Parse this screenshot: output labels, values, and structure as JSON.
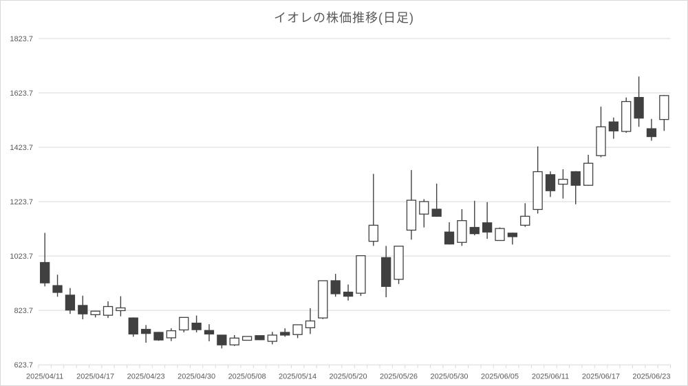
{
  "colors": {
    "background": "#ffffff",
    "frame_border": "#d9d9d9",
    "gridline": "#d9d9d9",
    "axis_text": "#595959",
    "title_text": "#595959",
    "candle_outline": "#404040",
    "bearish_fill": "#404040",
    "bullish_fill": "#ffffff"
  },
  "chart_data": {
    "type": "candlestick",
    "title": "イオレの株価推移(日足)",
    "grid": true,
    "y_axis": {
      "min": 623.7,
      "max": 1823.7,
      "tick_interval": 200,
      "tick_labels": [
        "623.7",
        "823.7",
        "1023.7",
        "1223.7",
        "1423.7",
        "1623.7",
        "1823.7"
      ]
    },
    "x_axis": {
      "label_every_n_candles": 4,
      "tick_labels": [
        "2025/04/11",
        "2025/04/17",
        "2025/04/23",
        "2025/04/30",
        "2025/05/08",
        "2025/05/14",
        "2025/05/20",
        "2025/05/26",
        "2025/05/30",
        "2025/06/05",
        "2025/06/11",
        "2025/06/17",
        "2025/06/23"
      ]
    },
    "candles": [
      {
        "date": "2025/04/11",
        "open": 1000,
        "high": 1109,
        "low": 912,
        "close": 925
      },
      {
        "date": "2025/04/14",
        "open": 915,
        "high": 955,
        "low": 874,
        "close": 890
      },
      {
        "date": "2025/04/15",
        "open": 880,
        "high": 906,
        "low": 811,
        "close": 825
      },
      {
        "date": "2025/04/16",
        "open": 842,
        "high": 878,
        "low": 791,
        "close": 811
      },
      {
        "date": "2025/04/17",
        "open": 808,
        "high": 823,
        "low": 798,
        "close": 821
      },
      {
        "date": "2025/04/18",
        "open": 806,
        "high": 857,
        "low": 796,
        "close": 838
      },
      {
        "date": "2025/04/21",
        "open": 823,
        "high": 876,
        "low": 802,
        "close": 833
      },
      {
        "date": "2025/04/22",
        "open": 796,
        "high": 798,
        "low": 727,
        "close": 737
      },
      {
        "date": "2025/04/23",
        "open": 754,
        "high": 770,
        "low": 705,
        "close": 739
      },
      {
        "date": "2025/04/24",
        "open": 743,
        "high": 745,
        "low": 712,
        "close": 715
      },
      {
        "date": "2025/04/25",
        "open": 723,
        "high": 758,
        "low": 711,
        "close": 749
      },
      {
        "date": "2025/04/28",
        "open": 752,
        "high": 799,
        "low": 743,
        "close": 798
      },
      {
        "date": "2025/04/30",
        "open": 777,
        "high": 805,
        "low": 743,
        "close": 753
      },
      {
        "date": "2025/05/01",
        "open": 750,
        "high": 773,
        "low": 710,
        "close": 737
      },
      {
        "date": "2025/05/02",
        "open": 733,
        "high": 734,
        "low": 684,
        "close": 697
      },
      {
        "date": "2025/05/07",
        "open": 697,
        "high": 733,
        "low": 693,
        "close": 722
      },
      {
        "date": "2025/05/08",
        "open": 714,
        "high": 729,
        "low": 713,
        "close": 728
      },
      {
        "date": "2025/05/09",
        "open": 731,
        "high": 732,
        "low": 714,
        "close": 716
      },
      {
        "date": "2025/05/12",
        "open": 710,
        "high": 745,
        "low": 699,
        "close": 733
      },
      {
        "date": "2025/05/13",
        "open": 743,
        "high": 758,
        "low": 727,
        "close": 733
      },
      {
        "date": "2025/05/14",
        "open": 735,
        "high": 772,
        "low": 722,
        "close": 771
      },
      {
        "date": "2025/05/15",
        "open": 760,
        "high": 832,
        "low": 737,
        "close": 785
      },
      {
        "date": "2025/05/16",
        "open": 796,
        "high": 934,
        "low": 792,
        "close": 933
      },
      {
        "date": "2025/05/19",
        "open": 933,
        "high": 958,
        "low": 874,
        "close": 885
      },
      {
        "date": "2025/05/20",
        "open": 891,
        "high": 919,
        "low": 860,
        "close": 876
      },
      {
        "date": "2025/05/21",
        "open": 887,
        "high": 1026,
        "low": 877,
        "close": 1025
      },
      {
        "date": "2025/05/22",
        "open": 1078,
        "high": 1326,
        "low": 1061,
        "close": 1137
      },
      {
        "date": "2025/05/23",
        "open": 1018,
        "high": 1061,
        "low": 872,
        "close": 912
      },
      {
        "date": "2025/05/26",
        "open": 938,
        "high": 1061,
        "low": 921,
        "close": 1060
      },
      {
        "date": "2025/05/27",
        "open": 1119,
        "high": 1340,
        "low": 1084,
        "close": 1229
      },
      {
        "date": "2025/05/28",
        "open": 1178,
        "high": 1233,
        "low": 1129,
        "close": 1224
      },
      {
        "date": "2025/05/29",
        "open": 1196,
        "high": 1290,
        "low": 1168,
        "close": 1170
      },
      {
        "date": "2025/05/30",
        "open": 1112,
        "high": 1148,
        "low": 1066,
        "close": 1068
      },
      {
        "date": "2025/06/02",
        "open": 1074,
        "high": 1196,
        "low": 1061,
        "close": 1154
      },
      {
        "date": "2025/06/03",
        "open": 1129,
        "high": 1227,
        "low": 1100,
        "close": 1106
      },
      {
        "date": "2025/06/04",
        "open": 1146,
        "high": 1222,
        "low": 1087,
        "close": 1112
      },
      {
        "date": "2025/06/05",
        "open": 1081,
        "high": 1129,
        "low": 1080,
        "close": 1125
      },
      {
        "date": "2025/06/06",
        "open": 1108,
        "high": 1110,
        "low": 1066,
        "close": 1095
      },
      {
        "date": "2025/06/09",
        "open": 1137,
        "high": 1218,
        "low": 1131,
        "close": 1170
      },
      {
        "date": "2025/06/10",
        "open": 1195,
        "high": 1427,
        "low": 1180,
        "close": 1334
      },
      {
        "date": "2025/06/11",
        "open": 1323,
        "high": 1335,
        "low": 1241,
        "close": 1264
      },
      {
        "date": "2025/06/12",
        "open": 1288,
        "high": 1343,
        "low": 1235,
        "close": 1306
      },
      {
        "date": "2025/06/13",
        "open": 1334,
        "high": 1336,
        "low": 1214,
        "close": 1284
      },
      {
        "date": "2025/06/16",
        "open": 1284,
        "high": 1396,
        "low": 1282,
        "close": 1365
      },
      {
        "date": "2025/06/17",
        "open": 1393,
        "high": 1573,
        "low": 1387,
        "close": 1499
      },
      {
        "date": "2025/06/18",
        "open": 1517,
        "high": 1533,
        "low": 1455,
        "close": 1484
      },
      {
        "date": "2025/06/19",
        "open": 1482,
        "high": 1607,
        "low": 1477,
        "close": 1592
      },
      {
        "date": "2025/06/20",
        "open": 1607,
        "high": 1684,
        "low": 1499,
        "close": 1531
      },
      {
        "date": "2025/06/23",
        "open": 1492,
        "high": 1528,
        "low": 1448,
        "close": 1463
      },
      {
        "date": "2025/06/24",
        "open": 1526,
        "high": 1616,
        "low": 1484,
        "close": 1614
      }
    ]
  }
}
